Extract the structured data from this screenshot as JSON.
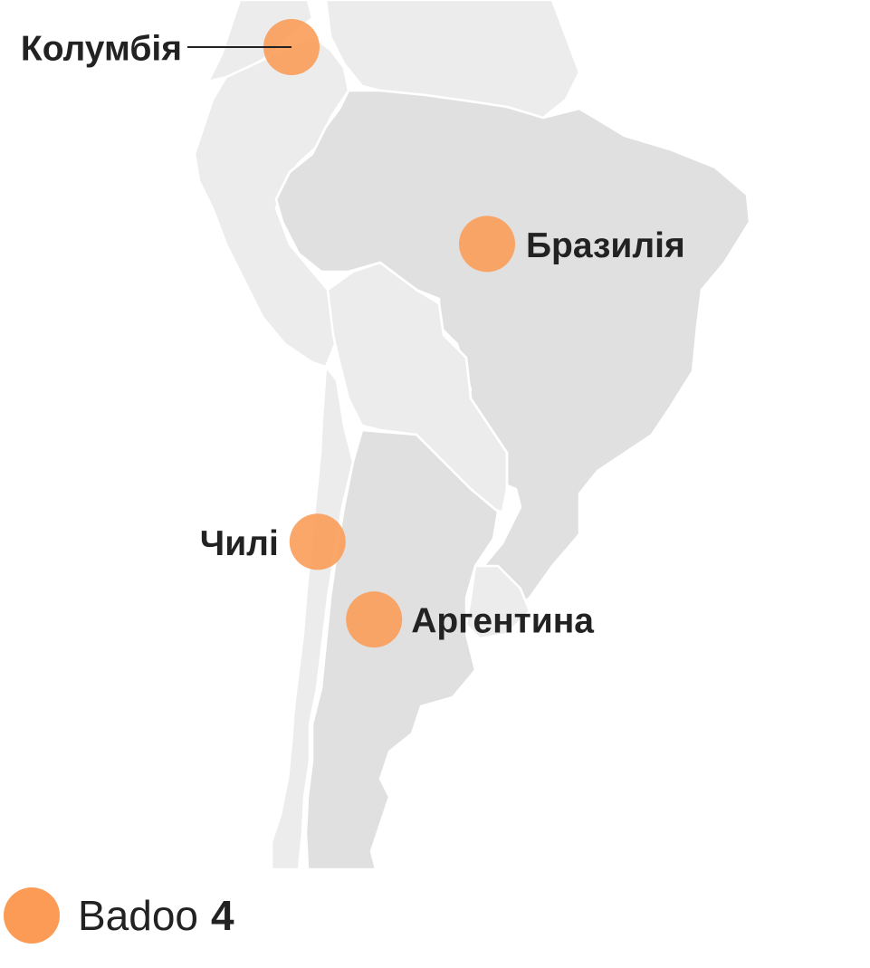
{
  "colors": {
    "marker": "#fb9b55",
    "land": "#e0e0e0",
    "land_light": "#ececec",
    "borders": "#ffffff",
    "text": "#222222"
  },
  "markers": [
    {
      "id": "colombia",
      "label": "Колумбія",
      "lon": -74.0,
      "lat": 4.7
    },
    {
      "id": "brazil",
      "label": "Бразилія",
      "lon": -51.5,
      "lat": -10.5
    },
    {
      "id": "chile",
      "label": "Чилі",
      "lon": -71.0,
      "lat": -33.5
    },
    {
      "id": "argentina",
      "label": "Аргентина",
      "lon": -64.5,
      "lat": -39.5
    }
  ],
  "legend": {
    "label": "Badoo",
    "value": "4",
    "icon": "orange-circle-icon"
  }
}
